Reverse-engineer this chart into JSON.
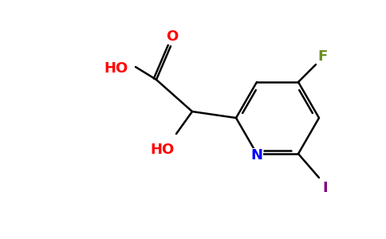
{
  "background_color": "#ffffff",
  "bond_color": "#000000",
  "atom_colors": {
    "O": "#ff0000",
    "HO": "#ff0000",
    "N": "#0000ff",
    "F": "#6b8e23",
    "I": "#800080"
  },
  "figsize": [
    4.84,
    3.0
  ],
  "dpi": 100,
  "lw": 1.8,
  "fontsize": 13
}
